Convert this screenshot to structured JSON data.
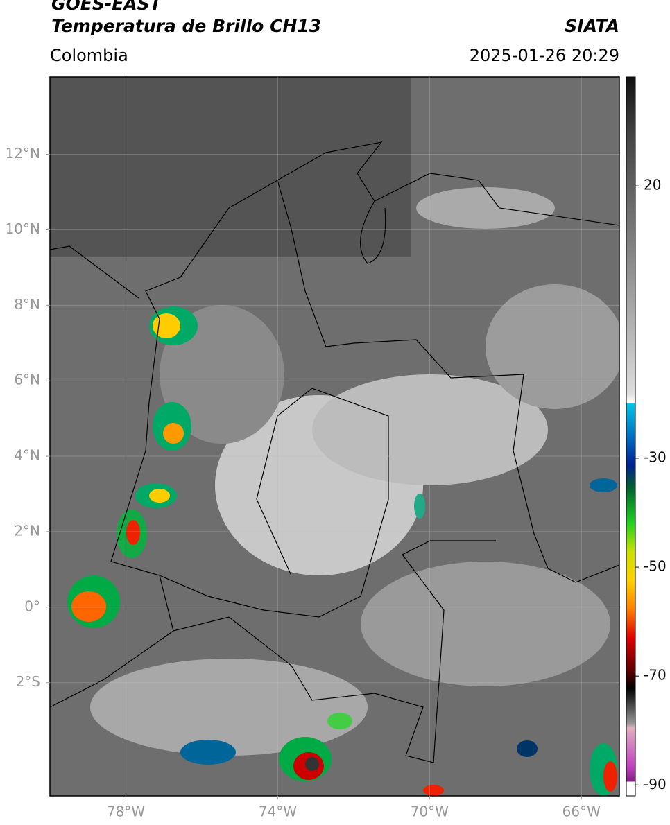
{
  "header": {
    "title": "GOES-EAST",
    "subtitle": "Temperatura de Brillo CH13",
    "source": "SIATA",
    "region": "Colombia",
    "timestamp": "2025-01-26 20:29"
  },
  "map": {
    "lonlim": [
      -80,
      -65
    ],
    "latlim": [
      -5,
      14.05
    ],
    "lon_ticks": [
      {
        "value": -78,
        "label": "78°W"
      },
      {
        "value": -74,
        "label": "74°W"
      },
      {
        "value": -70,
        "label": "70°W"
      },
      {
        "value": -66,
        "label": "66°W"
      }
    ],
    "lat_ticks": [
      {
        "value": 12,
        "label": "12°N"
      },
      {
        "value": 10,
        "label": "10°N"
      },
      {
        "value": 8,
        "label": "8°N"
      },
      {
        "value": 6,
        "label": "6°N"
      },
      {
        "value": 4,
        "label": "4°N"
      },
      {
        "value": 2,
        "label": "2°N"
      },
      {
        "value": 0,
        "label": "0°"
      },
      {
        "value": -2,
        "label": "2°S"
      }
    ]
  },
  "colorbar": {
    "lim": [
      40,
      -92
    ],
    "ticks": [
      20,
      -30,
      -50,
      -70,
      -90
    ]
  }
}
